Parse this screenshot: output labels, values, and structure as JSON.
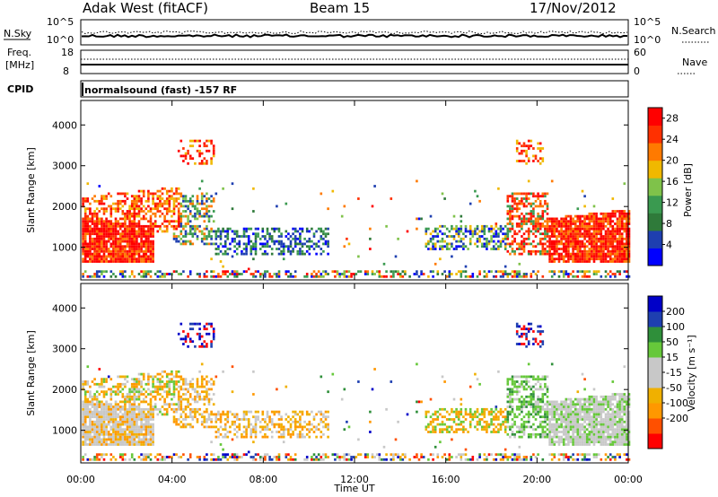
{
  "header": {
    "station": "Adak West (fitACF)",
    "beam": "Beam 15",
    "date": "17/Nov/2012"
  },
  "strip_labels": {
    "nsky": "N.Sky",
    "nsearch": "N.Search",
    "freq_line1": "Freq.",
    "freq_line2": "[MHz]",
    "nave": "Nave",
    "cpid": "CPID",
    "cpid_value": "normalsound (fast) -157 RF",
    "noise_ticks_left": [
      "10^5",
      "10^0"
    ],
    "noise_ticks_right": [
      "10^5",
      "10^0"
    ],
    "freq_ticks": [
      "18",
      "8"
    ],
    "nave_ticks": [
      "60",
      "0"
    ]
  },
  "colors": {
    "power_bar": [
      "#0000ff",
      "#1e3fb0",
      "#2f7a3a",
      "#3a9a50",
      "#7fc24a",
      "#f0b800",
      "#ff7a00",
      "#ff3000",
      "#ff0000"
    ],
    "velocity_bar": [
      "#ff0000",
      "#ff5000",
      "#ff9800",
      "#f0b000",
      "#c8c8c8",
      "#c8c8c8",
      "#66c83a",
      "#2f8f3a",
      "#1e3fb0",
      "#0000c8"
    ]
  },
  "chart_data": [
    {
      "type": "heatmap",
      "name": "power",
      "ylabel": "Slant Range [km]",
      "x_ticks": [
        "00:00",
        "04:00",
        "08:00",
        "12:00",
        "16:00",
        "20:00",
        "00:00"
      ],
      "y_ticks": [
        1000,
        2000,
        3000,
        4000
      ],
      "ylim": [
        200,
        4600
      ],
      "colorbar": {
        "label": "Power [dB]",
        "ticks": [
          4,
          8,
          12,
          16,
          20,
          24,
          28
        ],
        "range": [
          0,
          30
        ]
      }
    },
    {
      "type": "heatmap",
      "name": "velocity",
      "ylabel": "Slant Range [km]",
      "xlabel": "Time UT",
      "x_ticks": [
        "00:00",
        "04:00",
        "08:00",
        "12:00",
        "16:00",
        "20:00",
        "00:00"
      ],
      "y_ticks": [
        1000,
        2000,
        3000,
        4000
      ],
      "ylim": [
        200,
        4600
      ],
      "colorbar": {
        "label": "Velocity [m s⁻¹]",
        "ticks": [
          "200",
          "100",
          "50",
          "15",
          "-15",
          "-50",
          "-100",
          "-200"
        ]
      }
    }
  ]
}
